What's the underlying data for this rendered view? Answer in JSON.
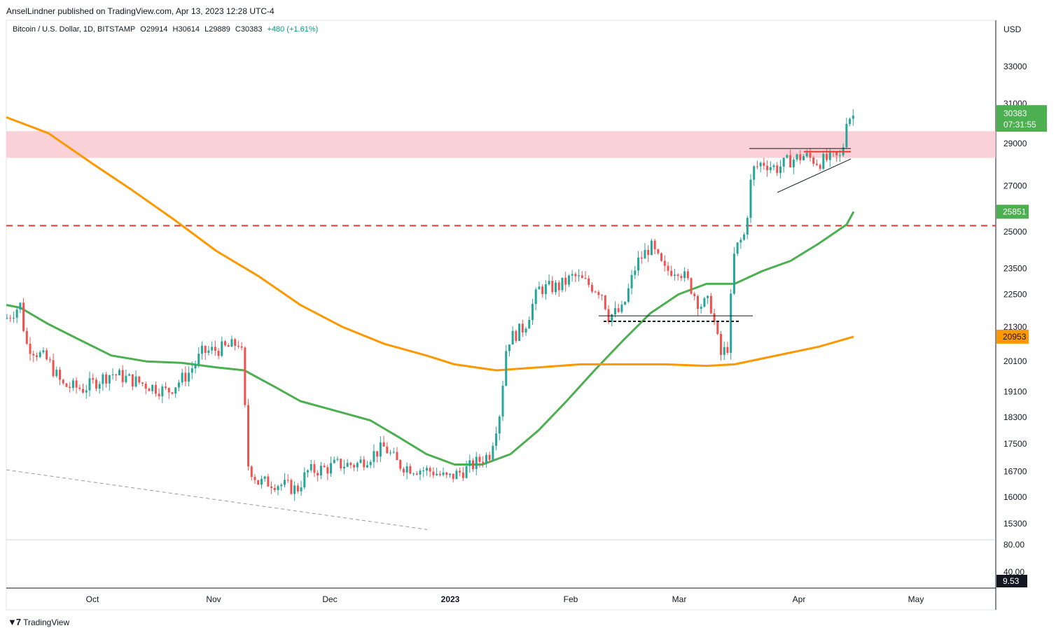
{
  "header": {
    "publisher": "AnselLindner published on TradingView.com, Apr 13, 2023 12:28 UTC-4"
  },
  "legend": {
    "symbol": "Bitcoin / U.S. Dollar, 1D, BITSTAMP",
    "open": "O29914",
    "high": "H30614",
    "low": "L29889",
    "close": "C30383",
    "change": "+480 (+1.61%)"
  },
  "footer": {
    "brand": "TradingView"
  },
  "chart_data": {
    "type": "candlestick",
    "currency": "USD",
    "price_axis_labels": [
      "33000",
      "31000",
      "29000",
      "27000",
      "25000",
      "23500",
      "22500",
      "21300",
      "20100",
      "19100",
      "18300",
      "17500",
      "16700",
      "16000",
      "15300"
    ],
    "indicator_axis_labels": [
      "80.00",
      "40.00"
    ],
    "time_axis_labels": [
      "Oct",
      "Nov",
      "Dec",
      "2023",
      "Feb",
      "Mar",
      "Apr",
      "May"
    ],
    "last_price": {
      "value": "30383",
      "countdown": "07:31:55",
      "color": "#4caf50"
    },
    "ma_labels": [
      {
        "value": "25851",
        "color": "#4caf50"
      },
      {
        "value": "20953",
        "color": "#ff9800"
      }
    ],
    "indicator_value": {
      "value": "9.53",
      "color": "#131722"
    },
    "series": [
      {
        "name": "Moving average (green)",
        "color": "#4caf50",
        "values": [
          [
            0,
            22100
          ],
          [
            20,
            22000
          ],
          [
            60,
            21400
          ],
          [
            100,
            20900
          ],
          [
            150,
            20300
          ],
          [
            200,
            20100
          ],
          [
            250,
            20050
          ],
          [
            300,
            19900
          ],
          [
            340,
            19800
          ],
          [
            380,
            19300
          ],
          [
            420,
            18800
          ],
          [
            470,
            18500
          ],
          [
            520,
            18200
          ],
          [
            560,
            17700
          ],
          [
            600,
            17200
          ],
          [
            640,
            16900
          ],
          [
            680,
            16900
          ],
          [
            720,
            17200
          ],
          [
            760,
            17900
          ],
          [
            800,
            18800
          ],
          [
            840,
            19800
          ],
          [
            880,
            20800
          ],
          [
            920,
            21800
          ],
          [
            960,
            22500
          ],
          [
            1000,
            22900
          ],
          [
            1040,
            22900
          ],
          [
            1080,
            23400
          ],
          [
            1120,
            23800
          ],
          [
            1160,
            24500
          ],
          [
            1200,
            25300
          ],
          [
            1210,
            25851
          ]
        ]
      },
      {
        "name": "Moving average (orange)",
        "color": "#ff9800",
        "values": [
          [
            0,
            30300
          ],
          [
            60,
            29500
          ],
          [
            120,
            28100
          ],
          [
            180,
            26800
          ],
          [
            240,
            25500
          ],
          [
            300,
            24200
          ],
          [
            360,
            23200
          ],
          [
            420,
            22100
          ],
          [
            480,
            21300
          ],
          [
            540,
            20700
          ],
          [
            600,
            20300
          ],
          [
            640,
            20000
          ],
          [
            700,
            19800
          ],
          [
            760,
            19900
          ],
          [
            820,
            20000
          ],
          [
            880,
            20000
          ],
          [
            940,
            20000
          ],
          [
            1000,
            19950
          ],
          [
            1040,
            20000
          ],
          [
            1080,
            20200
          ],
          [
            1120,
            20400
          ],
          [
            1160,
            20600
          ],
          [
            1210,
            20953
          ]
        ]
      }
    ],
    "levels": [
      {
        "name": "Resistance zone",
        "from": 28300,
        "to": 29600,
        "color": "#f8c6cc"
      },
      {
        "name": "Dashed resistance",
        "value": 25250,
        "color": "#e53935"
      },
      {
        "name": "Breakout level",
        "value": 28600,
        "color": "#e53935"
      },
      {
        "name": "Support dashed",
        "value": 21500,
        "color": "#131722"
      }
    ]
  }
}
